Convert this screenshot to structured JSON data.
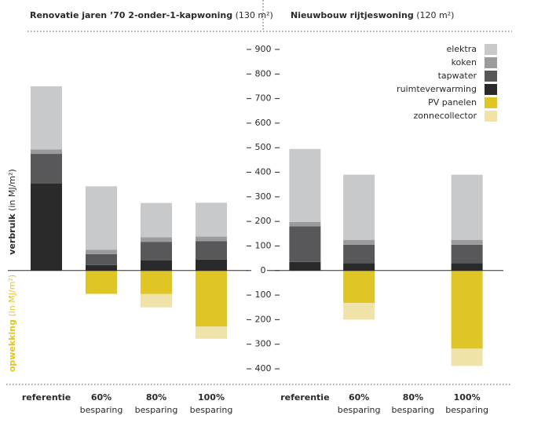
{
  "chart_data": [
    {
      "type": "stacked-bar",
      "title": "Renovatie jaren ’70 2-onder-1-kapwoning",
      "subtitle": "(130 m²)",
      "categories": [
        "referentie",
        "60%",
        "80%",
        "100%"
      ],
      "category_notes": [
        null,
        "besparing",
        "besparing",
        "besparing"
      ],
      "ylim": [
        -400,
        900
      ],
      "yticks": [
        900,
        800,
        700,
        600,
        500,
        400,
        300,
        200,
        100,
        0,
        {
          "value": -100,
          "label": "100"
        },
        {
          "value": -200,
          "label": "200"
        },
        {
          "value": -300,
          "label": "300"
        },
        {
          "value": -400,
          "label": "400"
        }
      ],
      "y_label_positive": {
        "title": "verbruik",
        "unit": "(in MJ/m²)"
      },
      "y_label_negative": {
        "title": "opwekking",
        "unit": "(in MJ/m²)"
      },
      "series": [
        {
          "name": "elektra",
          "color": "#c8c9cb",
          "values": [
            257,
            258,
            140,
            138
          ]
        },
        {
          "name": "koken",
          "color": "#9a9b9d",
          "values": [
            18,
            18,
            18,
            18
          ]
        },
        {
          "name": "tapwater",
          "color": "#58585a",
          "values": [
            120,
            45,
            75,
            75
          ]
        },
        {
          "name": "ruimteverwarming",
          "color": "#2b2a2b",
          "values": [
            355,
            22,
            42,
            45
          ]
        },
        {
          "name": "PV panelen",
          "color": "#dfc526",
          "values": [
            null,
            -95,
            -95,
            -228
          ]
        },
        {
          "name": "zonnecollector",
          "color": "#efe3aa",
          "values": [
            null,
            null,
            -55,
            -50
          ]
        }
      ]
    },
    {
      "type": "stacked-bar",
      "title": "Nieuwbouw rijtjeswoning",
      "subtitle": "(120 m²)",
      "categories": [
        "referentie",
        "60%",
        "80%",
        "100%"
      ],
      "category_notes": [
        null,
        "besparing",
        "besparing",
        "besparing"
      ],
      "ylim": [
        -400,
        900
      ],
      "legend": "top-right",
      "series": [
        {
          "name": "elektra",
          "color": "#c8c9cb",
          "values": [
            297,
            265,
            null,
            265
          ]
        },
        {
          "name": "koken",
          "color": "#9a9b9d",
          "values": [
            18,
            20,
            null,
            20
          ]
        },
        {
          "name": "tapwater",
          "color": "#58585a",
          "values": [
            145,
            75,
            null,
            75
          ]
        },
        {
          "name": "ruimteverwarming",
          "color": "#2b2a2b",
          "values": [
            35,
            30,
            null,
            30
          ]
        },
        {
          "name": "PV panelen",
          "color": "#dfc526",
          "values": [
            null,
            -132,
            null,
            -318
          ]
        },
        {
          "name": "zonnecollector",
          "color": "#efe3aa",
          "values": [
            null,
            -68,
            null,
            -70
          ]
        }
      ]
    }
  ]
}
